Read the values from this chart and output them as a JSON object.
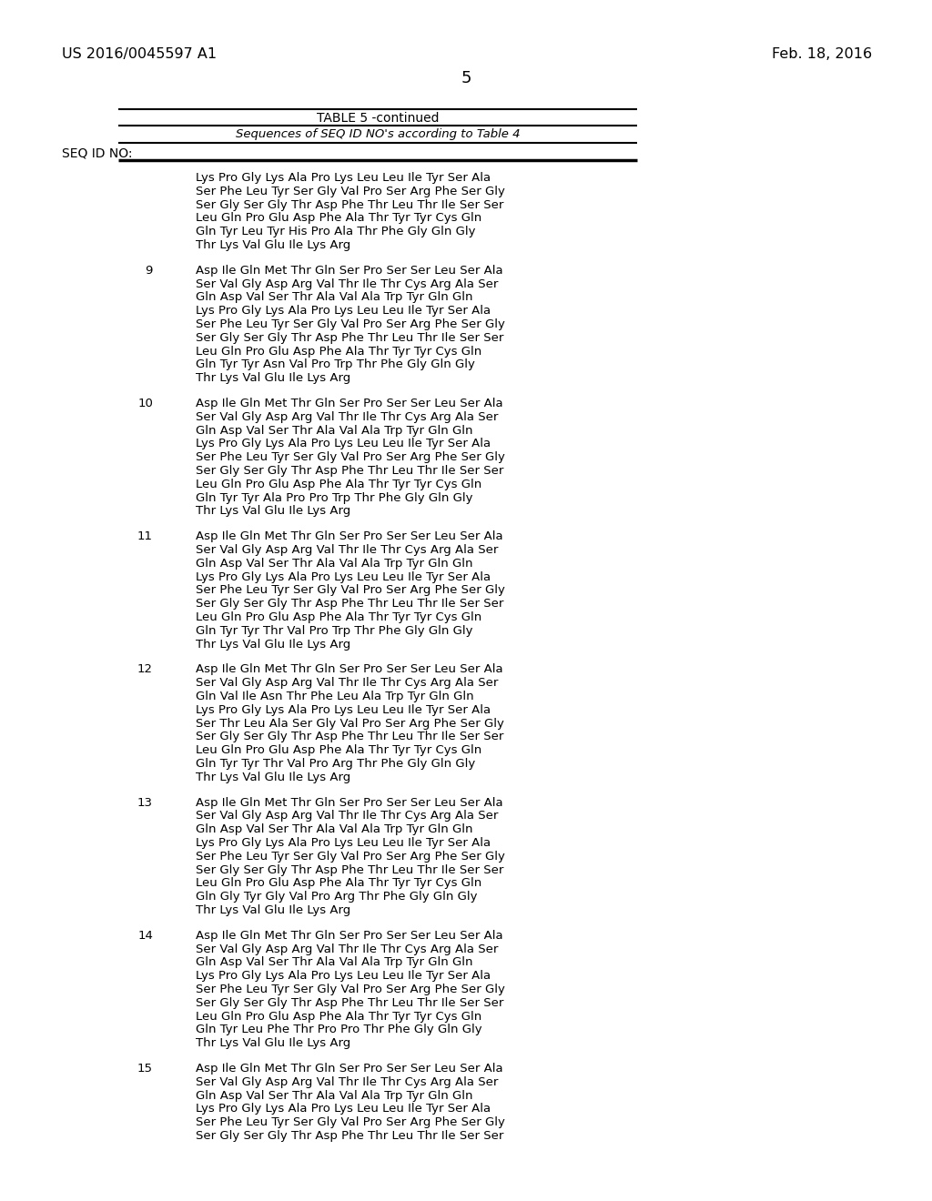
{
  "header_left": "US 2016/0045597 A1",
  "header_right": "Feb. 18, 2016",
  "page_number": "5",
  "table_title": "TABLE 5 -continued",
  "table_subtitle": "Sequences of SEQ ID NO's according to Table 4",
  "seq_id_label": "SEQ ID NO:",
  "background_color": "#ffffff",
  "text_color": "#000000",
  "entries": [
    {
      "number": "",
      "lines": [
        "Lys Pro Gly Lys Ala Pro Lys Leu Leu Ile Tyr Ser Ala",
        "Ser Phe Leu Tyr Ser Gly Val Pro Ser Arg Phe Ser Gly",
        "Ser Gly Ser Gly Thr Asp Phe Thr Leu Thr Ile Ser Ser",
        "Leu Gln Pro Glu Asp Phe Ala Thr Tyr Tyr Cys Gln",
        "Gln Tyr Leu Tyr His Pro Ala Thr Phe Gly Gln Gly",
        "Thr Lys Val Glu Ile Lys Arg"
      ]
    },
    {
      "number": "9",
      "lines": [
        "Asp Ile Gln Met Thr Gln Ser Pro Ser Ser Leu Ser Ala",
        "Ser Val Gly Asp Arg Val Thr Ile Thr Cys Arg Ala Ser",
        "Gln Asp Val Ser Thr Ala Val Ala Trp Tyr Gln Gln",
        "Lys Pro Gly Lys Ala Pro Lys Leu Leu Ile Tyr Ser Ala",
        "Ser Phe Leu Tyr Ser Gly Val Pro Ser Arg Phe Ser Gly",
        "Ser Gly Ser Gly Thr Asp Phe Thr Leu Thr Ile Ser Ser",
        "Leu Gln Pro Glu Asp Phe Ala Thr Tyr Tyr Cys Gln",
        "Gln Tyr Tyr Asn Val Pro Trp Thr Phe Gly Gln Gly",
        "Thr Lys Val Glu Ile Lys Arg"
      ]
    },
    {
      "number": "10",
      "lines": [
        "Asp Ile Gln Met Thr Gln Ser Pro Ser Ser Leu Ser Ala",
        "Ser Val Gly Asp Arg Val Thr Ile Thr Cys Arg Ala Ser",
        "Gln Asp Val Ser Thr Ala Val Ala Trp Tyr Gln Gln",
        "Lys Pro Gly Lys Ala Pro Lys Leu Leu Ile Tyr Ser Ala",
        "Ser Phe Leu Tyr Ser Gly Val Pro Ser Arg Phe Ser Gly",
        "Ser Gly Ser Gly Thr Asp Phe Thr Leu Thr Ile Ser Ser",
        "Leu Gln Pro Glu Asp Phe Ala Thr Tyr Tyr Cys Gln",
        "Gln Tyr Tyr Ala Pro Pro Trp Thr Phe Gly Gln Gly",
        "Thr Lys Val Glu Ile Lys Arg"
      ]
    },
    {
      "number": "11",
      "lines": [
        "Asp Ile Gln Met Thr Gln Ser Pro Ser Ser Leu Ser Ala",
        "Ser Val Gly Asp Arg Val Thr Ile Thr Cys Arg Ala Ser",
        "Gln Asp Val Ser Thr Ala Val Ala Trp Tyr Gln Gln",
        "Lys Pro Gly Lys Ala Pro Lys Leu Leu Ile Tyr Ser Ala",
        "Ser Phe Leu Tyr Ser Gly Val Pro Ser Arg Phe Ser Gly",
        "Ser Gly Ser Gly Thr Asp Phe Thr Leu Thr Ile Ser Ser",
        "Leu Gln Pro Glu Asp Phe Ala Thr Tyr Tyr Cys Gln",
        "Gln Tyr Tyr Thr Val Pro Trp Thr Phe Gly Gln Gly",
        "Thr Lys Val Glu Ile Lys Arg"
      ]
    },
    {
      "number": "12",
      "lines": [
        "Asp Ile Gln Met Thr Gln Ser Pro Ser Ser Leu Ser Ala",
        "Ser Val Gly Asp Arg Val Thr Ile Thr Cys Arg Ala Ser",
        "Gln Val Ile Asn Thr Phe Leu Ala Trp Tyr Gln Gln",
        "Lys Pro Gly Lys Ala Pro Lys Leu Leu Ile Tyr Ser Ala",
        "Ser Thr Leu Ala Ser Gly Val Pro Ser Arg Phe Ser Gly",
        "Ser Gly Ser Gly Thr Asp Phe Thr Leu Thr Ile Ser Ser",
        "Leu Gln Pro Glu Asp Phe Ala Thr Tyr Tyr Cys Gln",
        "Gln Tyr Tyr Thr Val Pro Arg Thr Phe Gly Gln Gly",
        "Thr Lys Val Glu Ile Lys Arg"
      ]
    },
    {
      "number": "13",
      "lines": [
        "Asp Ile Gln Met Thr Gln Ser Pro Ser Ser Leu Ser Ala",
        "Ser Val Gly Asp Arg Val Thr Ile Thr Cys Arg Ala Ser",
        "Gln Asp Val Ser Thr Ala Val Ala Trp Tyr Gln Gln",
        "Lys Pro Gly Lys Ala Pro Lys Leu Leu Ile Tyr Ser Ala",
        "Ser Phe Leu Tyr Ser Gly Val Pro Ser Arg Phe Ser Gly",
        "Ser Gly Ser Gly Thr Asp Phe Thr Leu Thr Ile Ser Ser",
        "Leu Gln Pro Glu Asp Phe Ala Thr Tyr Tyr Cys Gln",
        "Gln Gly Tyr Gly Val Pro Arg Thr Phe Gly Gln Gly",
        "Thr Lys Val Glu Ile Lys Arg"
      ]
    },
    {
      "number": "14",
      "lines": [
        "Asp Ile Gln Met Thr Gln Ser Pro Ser Ser Leu Ser Ala",
        "Ser Val Gly Asp Arg Val Thr Ile Thr Cys Arg Ala Ser",
        "Gln Asp Val Ser Thr Ala Val Ala Trp Tyr Gln Gln",
        "Lys Pro Gly Lys Ala Pro Lys Leu Leu Ile Tyr Ser Ala",
        "Ser Phe Leu Tyr Ser Gly Val Pro Ser Arg Phe Ser Gly",
        "Ser Gly Ser Gly Thr Asp Phe Thr Leu Thr Ile Ser Ser",
        "Leu Gln Pro Glu Asp Phe Ala Thr Tyr Tyr Cys Gln",
        "Gln Tyr Leu Phe Thr Pro Pro Thr Phe Gly Gln Gly",
        "Thr Lys Val Glu Ile Lys Arg"
      ]
    },
    {
      "number": "15",
      "lines": [
        "Asp Ile Gln Met Thr Gln Ser Pro Ser Ser Leu Ser Ala",
        "Ser Val Gly Asp Arg Val Thr Ile Thr Cys Arg Ala Ser",
        "Gln Asp Val Ser Thr Ala Val Ala Trp Tyr Gln Gln",
        "Lys Pro Gly Lys Ala Pro Lys Leu Leu Ile Tyr Ser Ala",
        "Ser Phe Leu Tyr Ser Gly Val Pro Ser Arg Phe Ser Gly",
        "Ser Gly Ser Gly Thr Asp Phe Thr Leu Thr Ile Ser Ser"
      ]
    }
  ]
}
